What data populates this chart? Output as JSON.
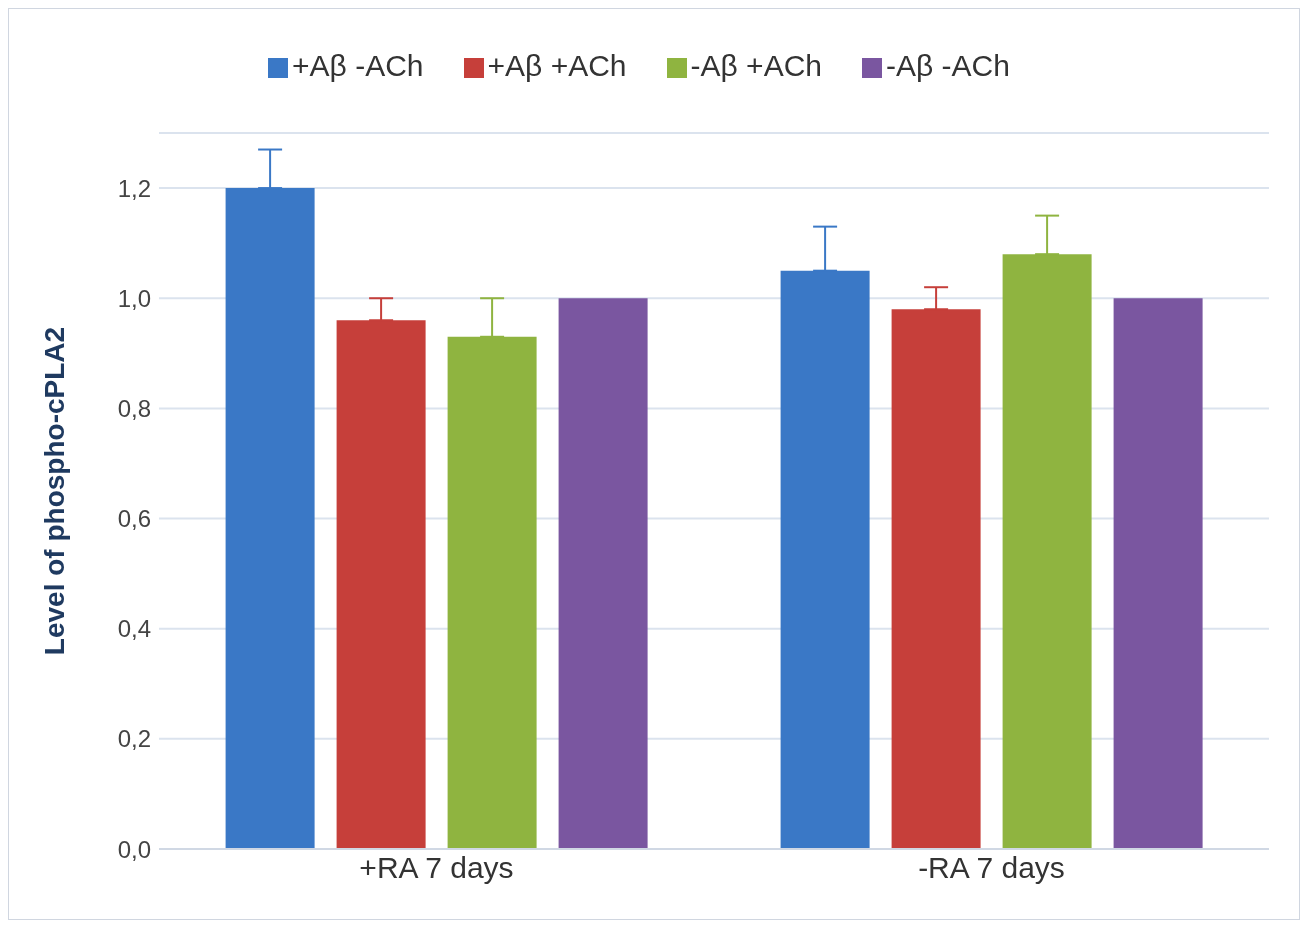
{
  "chart_data": {
    "type": "bar",
    "ylabel": "Level of phospho-cPLA2",
    "categories": [
      "+RA 7 days",
      "-RA 7 days"
    ],
    "series": [
      {
        "name": "+Aβ -ACh",
        "color": "#3a78c6",
        "values": [
          1.2,
          1.05
        ],
        "errors": [
          [
            1.2,
            1.27
          ],
          [
            1.05,
            1.13
          ]
        ]
      },
      {
        "name": "+Aβ +ACh",
        "color": "#c63f3a",
        "values": [
          0.96,
          0.98
        ],
        "errors": [
          [
            0.96,
            1.0
          ],
          [
            0.98,
            1.02
          ]
        ]
      },
      {
        "name": "-Aβ +ACh",
        "color": "#8fb440",
        "values": [
          0.93,
          1.08
        ],
        "errors": [
          [
            0.93,
            1.0
          ],
          [
            1.08,
            1.15
          ]
        ]
      },
      {
        "name": "-Aβ -ACh",
        "color": "#7a56a0",
        "values": [
          1.0,
          1.0
        ]
      }
    ],
    "ylim": [
      0,
      1.3
    ],
    "yticks": [
      {
        "value": 0,
        "label": "0,0"
      },
      {
        "value": 0.2,
        "label": "0,2"
      },
      {
        "value": 0.4,
        "label": "0,4"
      },
      {
        "value": 0.6,
        "label": "0,6"
      },
      {
        "value": 0.8,
        "label": "0,8"
      },
      {
        "value": 1.0,
        "label": "1,0"
      },
      {
        "value": 1.2,
        "label": "1,2"
      }
    ],
    "grid": "y",
    "legend": "top"
  }
}
